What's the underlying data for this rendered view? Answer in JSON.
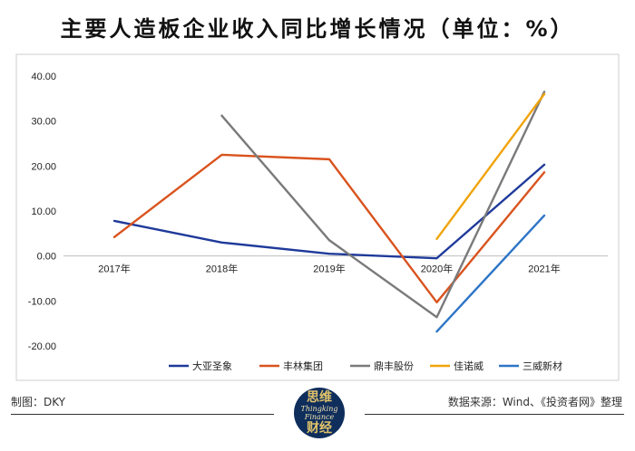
{
  "title": "主要人造板企业收入同比增长情况（单位：%）",
  "chart_data": {
    "type": "line",
    "categories": [
      "2017年",
      "2018年",
      "2019年",
      "2020年",
      "2021年"
    ],
    "ylim": [
      -20,
      40
    ],
    "yticks": [
      "40.00",
      "30.00",
      "20.00",
      "10.00",
      "0.00",
      "-10.00",
      "-20.00"
    ],
    "ytick_values": [
      40,
      30,
      20,
      10,
      0,
      -10,
      -20
    ],
    "legend_position": "bottom",
    "series": [
      {
        "name": "大亚圣象",
        "color": "#1f3a9a",
        "values": [
          7.8,
          3.0,
          0.5,
          -0.5,
          20.3
        ]
      },
      {
        "name": "丰林集团",
        "color": "#d9531e",
        "values": [
          4.2,
          22.5,
          21.5,
          -10.3,
          18.6
        ]
      },
      {
        "name": "鼎丰股份",
        "color": "#7a7a7a",
        "values": [
          null,
          31.2,
          3.5,
          -13.6,
          36.5
        ]
      },
      {
        "name": "佳诺威",
        "color": "#f0a30a",
        "values": [
          null,
          null,
          null,
          3.8,
          36.0
        ]
      },
      {
        "name": "三威新材",
        "color": "#2e75c6",
        "values": [
          null,
          null,
          null,
          -16.8,
          9.0
        ]
      }
    ]
  },
  "footer": {
    "left": "制图：DKY",
    "right": "数据来源：Wind、《投资者网》整理"
  },
  "logo": {
    "line1": "思维",
    "line2": "Thingking",
    "line3": "Finance",
    "line4": "财经",
    "colors": {
      "background": "#0f2e5c",
      "text": "#e0c26a"
    }
  }
}
